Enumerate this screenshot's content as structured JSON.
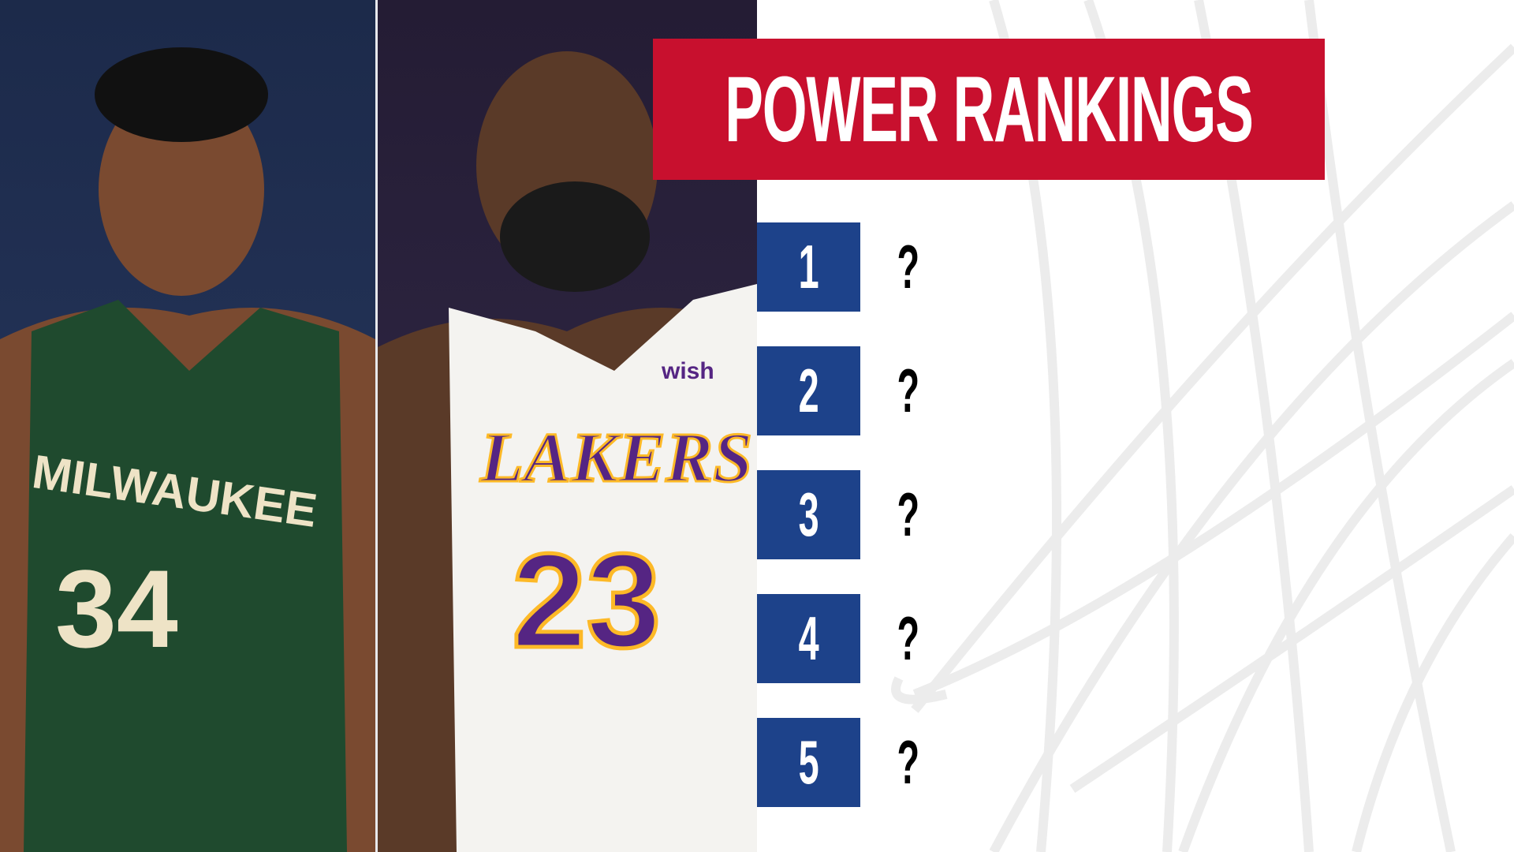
{
  "title": "POWER RANKINGS",
  "colors": {
    "banner": "#c8102e",
    "rank_box": "#1d428a"
  },
  "photos": [
    {
      "jersey_text": "MILWAUKEE",
      "jersey_number": "34"
    },
    {
      "jersey_text": "LAKERS",
      "jersey_number": "23",
      "sponsor": "wish"
    }
  ],
  "rankings": [
    {
      "rank": "1",
      "name": "?"
    },
    {
      "rank": "2",
      "name": "?"
    },
    {
      "rank": "3",
      "name": "?"
    },
    {
      "rank": "4",
      "name": "?"
    },
    {
      "rank": "5",
      "name": "?"
    }
  ]
}
